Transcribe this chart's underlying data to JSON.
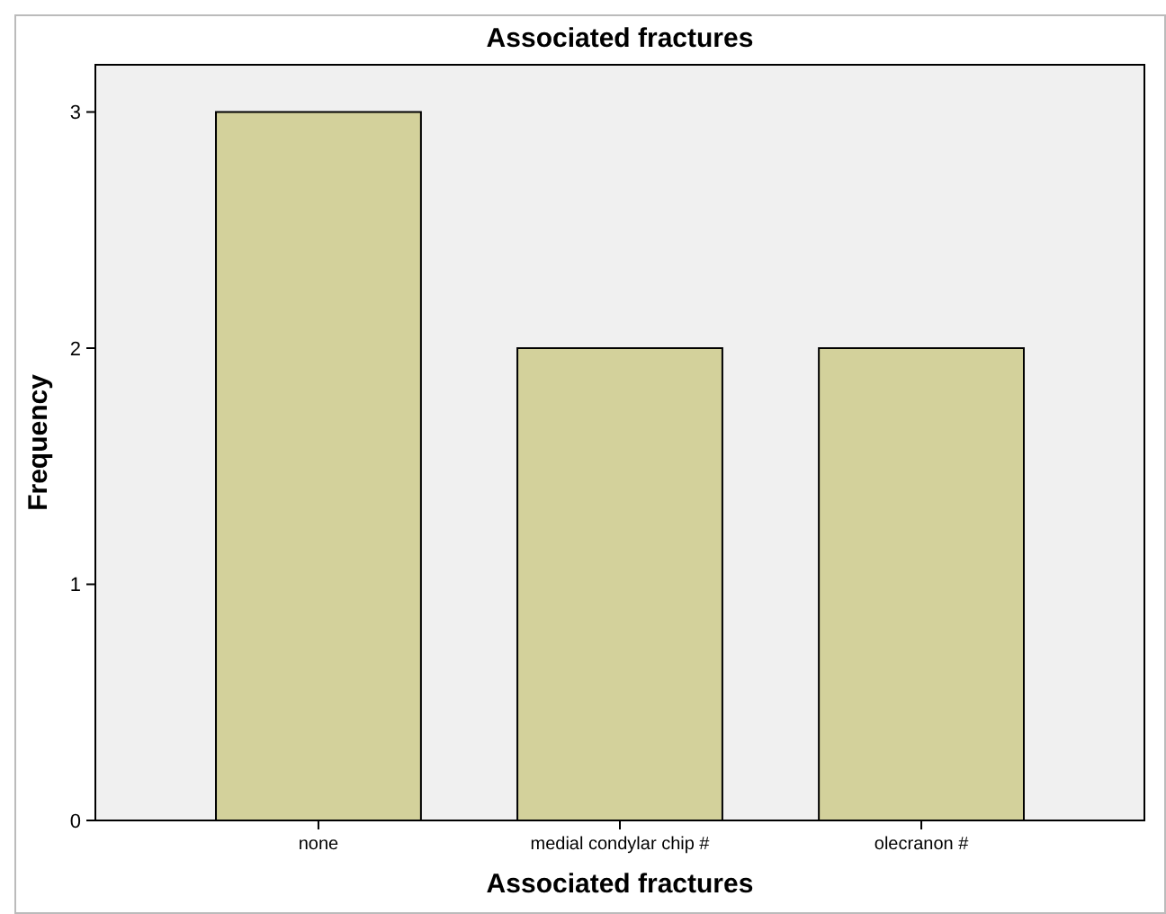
{
  "chart_data": {
    "type": "bar",
    "title": "Associated fractures",
    "xlabel": "Associated fractures",
    "ylabel": "Frequency",
    "categories": [
      "none",
      "medial condylar chip #",
      "olecranon #"
    ],
    "values": [
      3,
      2,
      2
    ],
    "color": "#d3d19b",
    "ylim": [
      0,
      3.2
    ],
    "yticks": [
      0,
      1,
      2,
      3
    ],
    "grid": false
  }
}
